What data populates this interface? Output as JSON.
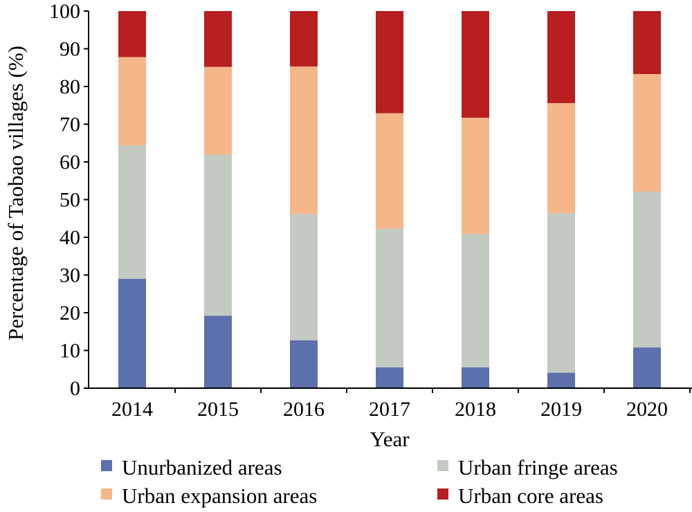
{
  "chart_data": {
    "type": "bar",
    "stacked": true,
    "categories": [
      "2014",
      "2015",
      "2016",
      "2017",
      "2018",
      "2019",
      "2020"
    ],
    "series": [
      {
        "name": "Unurbanized areas",
        "color": "#5b70ad",
        "values": [
          29.0,
          19.2,
          12.7,
          5.5,
          5.5,
          4.1,
          10.8
        ]
      },
      {
        "name": "Urban fringe areas",
        "color": "#c2cac2",
        "values": [
          35.4,
          42.7,
          33.5,
          36.8,
          35.4,
          42.3,
          41.3
        ]
      },
      {
        "name": "Urban expansion areas",
        "color": "#f5b789",
        "values": [
          23.4,
          23.3,
          39.1,
          30.6,
          30.8,
          29.2,
          31.2
        ]
      },
      {
        "name": "Urban core areas",
        "color": "#b71f20",
        "values": [
          12.2,
          14.8,
          14.7,
          27.1,
          28.3,
          24.4,
          16.7
        ]
      }
    ],
    "xlabel": "Year",
    "ylabel": "Percentage of Taobao villages (%)",
    "ylim": [
      0,
      100
    ],
    "yticks": [
      "0",
      "10",
      "20",
      "30",
      "40",
      "50",
      "60",
      "70",
      "80",
      "90",
      "100"
    ],
    "grid": false,
    "legend_position": "bottom"
  }
}
